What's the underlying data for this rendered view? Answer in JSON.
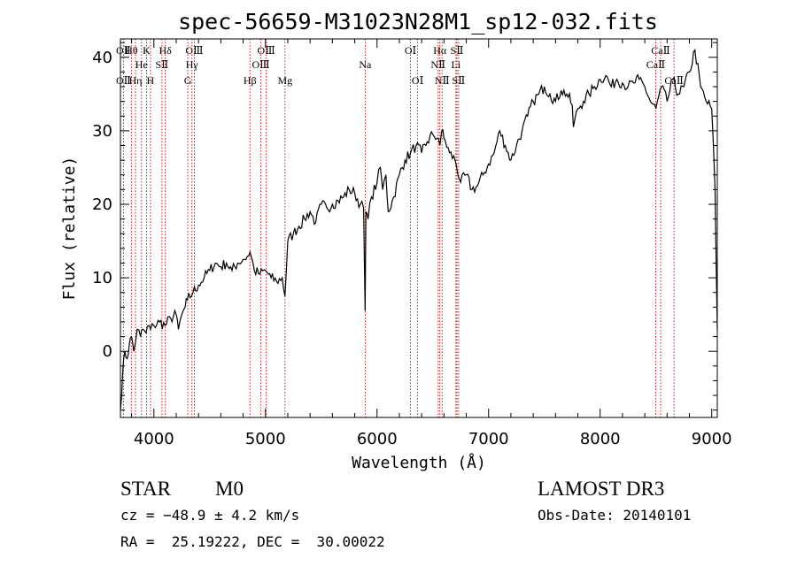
{
  "info": {
    "class_label": "STAR",
    "subclass_label": "M0",
    "redshift": "cz = −48.9 ± 4.2 km/s",
    "coords": "RA =  25.19222, DEC =  30.00022",
    "survey": "LAMOST DR3",
    "obs_date": "Obs-Date: 20140101"
  },
  "colors": {
    "spectrum": "#000000",
    "line_markers": "#cc0000",
    "axes": "#000000"
  },
  "chart_data": {
    "type": "line",
    "title": "spec-56659-M31023N28M1_sp12-032.fits",
    "xlabel": "Wavelength (Å)",
    "ylabel": "Flux (relative)",
    "xlim": [
      3700,
      9050
    ],
    "ylim": [
      -9,
      42.5
    ],
    "x_ticks": [
      4000,
      5000,
      6000,
      7000,
      8000,
      9000
    ],
    "y_ticks": [
      0,
      10,
      20,
      30,
      40
    ],
    "grid": false,
    "series": [
      {
        "x": [
          3700,
          3720,
          3740,
          3760,
          3780,
          3800,
          3820,
          3850,
          3880,
          3900,
          3930,
          3950,
          3970,
          4000,
          4050,
          4100,
          4150,
          4200,
          4220,
          4250,
          4280,
          4300,
          4350,
          4400,
          4450,
          4500,
          4550,
          4600,
          4650,
          4700,
          4750,
          4800,
          4850,
          4861,
          4880,
          4900,
          4950,
          5000,
          5050,
          5100,
          5150,
          5175,
          5200,
          5250,
          5300,
          5350,
          5400,
          5450,
          5500,
          5550,
          5600,
          5650,
          5700,
          5750,
          5800,
          5850,
          5880,
          5893,
          5900,
          5920,
          5950,
          6000,
          6030,
          6050,
          6080,
          6100,
          6150,
          6200,
          6250,
          6300,
          6350,
          6400,
          6450,
          6500,
          6550,
          6563,
          6580,
          6600,
          6650,
          6700,
          6750,
          6800,
          6850,
          6900,
          6950,
          7000,
          7050,
          7100,
          7150,
          7200,
          7250,
          7300,
          7350,
          7400,
          7450,
          7500,
          7550,
          7600,
          7650,
          7700,
          7750,
          7760,
          7800,
          7850,
          7900,
          7950,
          8000,
          8050,
          8100,
          8150,
          8200,
          8250,
          8300,
          8350,
          8400,
          8450,
          8500,
          8550,
          8600,
          8650,
          8700,
          8750,
          8800,
          8850,
          8900,
          8950,
          9000,
          9030,
          9050
        ],
        "y": [
          -8,
          -3,
          0,
          -1,
          1,
          2,
          0,
          3,
          2,
          3,
          2.5,
          3.5,
          3,
          3.5,
          4,
          3.5,
          4.5,
          5,
          3,
          5,
          6,
          7,
          8,
          9,
          10,
          11,
          12,
          11.5,
          12,
          11,
          12,
          12.5,
          13,
          13.5,
          12.5,
          11,
          10.5,
          11,
          10,
          9.5,
          10,
          7.5,
          15,
          16,
          17,
          18,
          19,
          17.5,
          20,
          19.5,
          20,
          20.5,
          21,
          22,
          21.5,
          20,
          19.5,
          5.5,
          19,
          18,
          21,
          23,
          25,
          22,
          24,
          19,
          21,
          24,
          26,
          27,
          28,
          27,
          28.5,
          29.5,
          29,
          28,
          30,
          29,
          27,
          26,
          23,
          24,
          22,
          22.5,
          24,
          25.5,
          27,
          30,
          28,
          26,
          28,
          30,
          32,
          34,
          35,
          36,
          35,
          34,
          35.5,
          35,
          33.5,
          30.5,
          33,
          34,
          35,
          36,
          37,
          37.5,
          36,
          37,
          36.5,
          36,
          36.5,
          37,
          36,
          34,
          33,
          36,
          34,
          37,
          35,
          36,
          38,
          41,
          36,
          34,
          33,
          22,
          3
        ]
      }
    ],
    "lines": [
      {
        "wave": 3727,
        "top": "OⅡ",
        "mid": "",
        "bot": "OⅡ"
      },
      {
        "wave": 3798,
        "top": "Hθ",
        "mid": "",
        "bot": ""
      },
      {
        "wave": 3835,
        "top": "",
        "mid": "",
        "bot": "Hη"
      },
      {
        "wave": 3889,
        "top": "",
        "mid": "He",
        "bot": ""
      },
      {
        "wave": 3934,
        "top": "K",
        "mid": "",
        "bot": ""
      },
      {
        "wave": 3969,
        "top": "",
        "mid": "",
        "bot": "H"
      },
      {
        "wave": 4072,
        "top": "",
        "mid": "SⅡ",
        "bot": ""
      },
      {
        "wave": 4102,
        "top": "Hδ",
        "mid": "",
        "bot": ""
      },
      {
        "wave": 4304,
        "top": "",
        "mid": "",
        "bot": "G"
      },
      {
        "wave": 4341,
        "top": "",
        "mid": "Hγ",
        "bot": ""
      },
      {
        "wave": 4363,
        "top": "OⅢ",
        "mid": "",
        "bot": ""
      },
      {
        "wave": 4861,
        "top": "",
        "mid": "",
        "bot": "Hβ"
      },
      {
        "wave": 4959,
        "top": "",
        "mid": "OⅢ",
        "bot": ""
      },
      {
        "wave": 5007,
        "top": "OⅢ",
        "mid": "",
        "bot": ""
      },
      {
        "wave": 5175,
        "top": "",
        "mid": "",
        "bot": "Mg"
      },
      {
        "wave": 5894,
        "top": "",
        "mid": "Na",
        "bot": ""
      },
      {
        "wave": 6300,
        "top": "OⅠ",
        "mid": "",
        "bot": ""
      },
      {
        "wave": 6364,
        "top": "",
        "mid": "",
        "bot": "OⅠ"
      },
      {
        "wave": 6548,
        "top": "",
        "mid": "NⅡ",
        "bot": ""
      },
      {
        "wave": 6563,
        "top": "Hα",
        "mid": "",
        "bot": ""
      },
      {
        "wave": 6583,
        "top": "",
        "mid": "",
        "bot": "NⅡ"
      },
      {
        "wave": 6707,
        "top": "",
        "mid": "Li",
        "bot": ""
      },
      {
        "wave": 6716,
        "top": "SⅡ",
        "mid": "",
        "bot": ""
      },
      {
        "wave": 6731,
        "top": "",
        "mid": "",
        "bot": "SⅡ"
      },
      {
        "wave": 8498,
        "top": "",
        "mid": "CaⅡ",
        "bot": ""
      },
      {
        "wave": 8542,
        "top": "CaⅡ",
        "mid": "",
        "bot": ""
      },
      {
        "wave": 8662,
        "top": "",
        "mid": "",
        "bot": "CaⅡ"
      }
    ]
  }
}
